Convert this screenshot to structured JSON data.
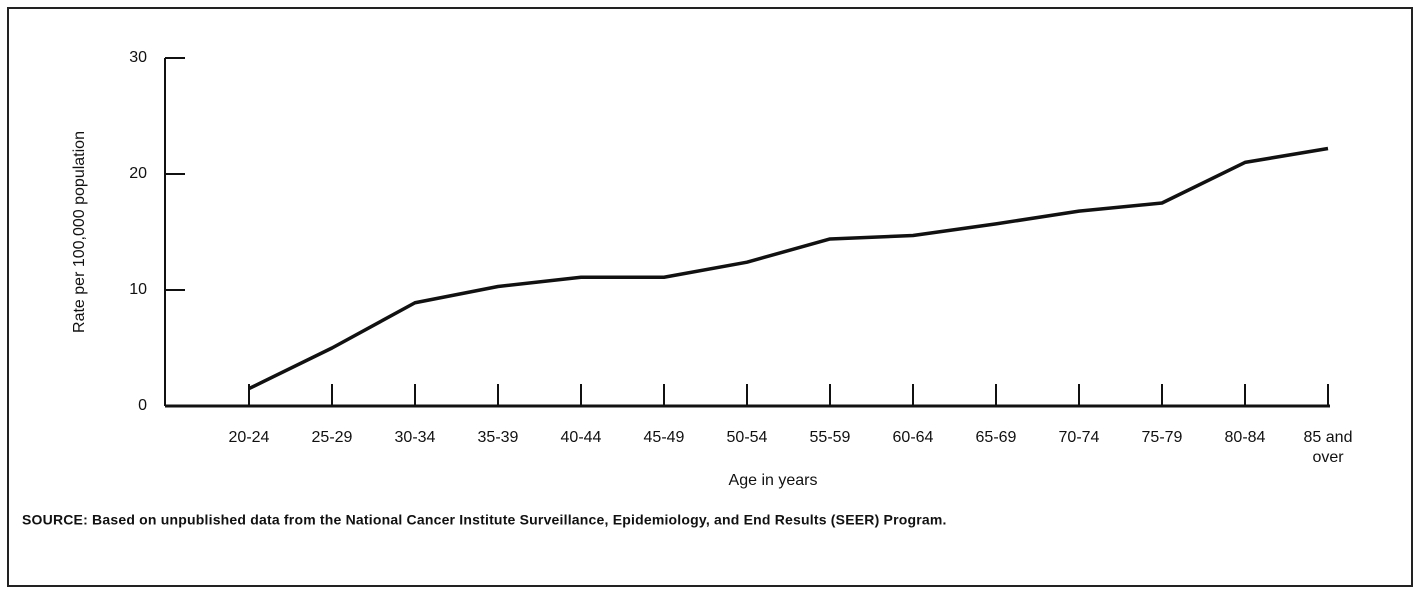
{
  "chart_data": {
    "type": "line",
    "categories": [
      "20-24",
      "25-29",
      "30-34",
      "35-39",
      "40-44",
      "45-49",
      "50-54",
      "55-59",
      "60-64",
      "65-69",
      "70-74",
      "75-79",
      "80-84",
      "85 and over"
    ],
    "values": [
      1.5,
      5.0,
      8.9,
      10.3,
      11.1,
      11.1,
      12.4,
      14.4,
      14.7,
      15.7,
      16.8,
      17.5,
      21.0,
      22.2
    ],
    "color": "#111111",
    "ylim": [
      0,
      30
    ],
    "yticks": [
      0,
      10,
      20,
      30
    ],
    "y_label": "Rate per 100,000 population",
    "x_label": "Age in years",
    "source": "SOURCE:  Based on unpublished data from the National Cancer Institute Surveillance, Epidemiology, and End Results (SEER) Program."
  }
}
